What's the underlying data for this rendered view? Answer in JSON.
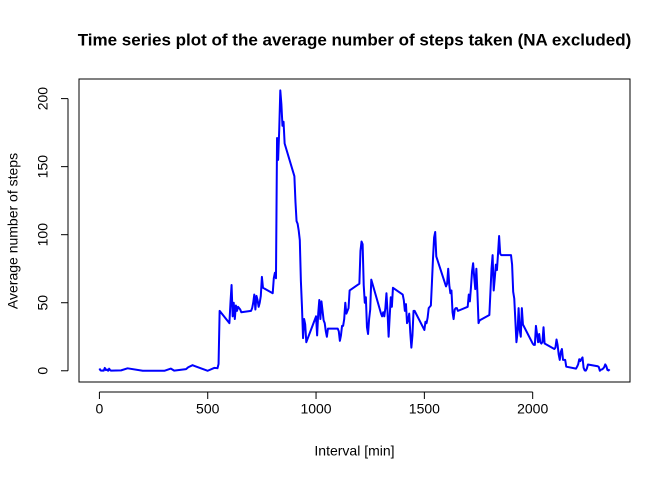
{
  "chart_data": {
    "type": "line",
    "title": "Time series plot of the average number of steps taken (NA excluded)",
    "x_label": "Interval [min]",
    "y_label": "Average number of steps",
    "xlim": [
      -94.2,
      2449.2
    ],
    "ylim": [
      -8.25,
      214.4
    ],
    "xticks": [
      0,
      500,
      1000,
      1500,
      2000
    ],
    "yticks": [
      0,
      50,
      100,
      150,
      200
    ],
    "x": [
      0,
      5,
      10,
      15,
      20,
      25,
      30,
      35,
      40,
      45,
      50,
      55,
      100,
      130,
      200,
      300,
      330,
      345,
      400,
      410,
      430,
      440,
      500,
      530,
      545,
      550,
      555,
      600,
      605,
      610,
      615,
      620,
      625,
      630,
      635,
      640,
      645,
      650,
      655,
      700,
      705,
      710,
      715,
      720,
      725,
      730,
      735,
      740,
      745,
      750,
      755,
      800,
      805,
      810,
      815,
      820,
      825,
      830,
      835,
      840,
      845,
      850,
      855,
      900,
      905,
      910,
      915,
      920,
      925,
      930,
      935,
      940,
      945,
      950,
      955,
      1000,
      1005,
      1010,
      1015,
      1020,
      1025,
      1030,
      1035,
      1040,
      1045,
      1050,
      1055,
      1100,
      1105,
      1110,
      1115,
      1120,
      1125,
      1130,
      1135,
      1140,
      1145,
      1150,
      1155,
      1200,
      1205,
      1210,
      1215,
      1220,
      1225,
      1230,
      1235,
      1240,
      1245,
      1250,
      1255,
      1300,
      1305,
      1310,
      1315,
      1320,
      1325,
      1330,
      1335,
      1340,
      1345,
      1350,
      1355,
      1400,
      1405,
      1410,
      1415,
      1420,
      1425,
      1430,
      1435,
      1440,
      1445,
      1450,
      1455,
      1500,
      1505,
      1510,
      1515,
      1520,
      1525,
      1530,
      1535,
      1540,
      1545,
      1550,
      1555,
      1600,
      1605,
      1610,
      1615,
      1620,
      1625,
      1630,
      1635,
      1640,
      1645,
      1650,
      1655,
      1700,
      1705,
      1710,
      1715,
      1720,
      1725,
      1730,
      1735,
      1740,
      1745,
      1750,
      1755,
      1800,
      1805,
      1810,
      1815,
      1820,
      1825,
      1830,
      1835,
      1840,
      1845,
      1850,
      1855,
      1900,
      1905,
      1910,
      1915,
      1920,
      1925,
      1930,
      1935,
      1940,
      1945,
      1950,
      1955,
      2000,
      2005,
      2010,
      2015,
      2020,
      2025,
      2030,
      2035,
      2040,
      2045,
      2050,
      2055,
      2100,
      2105,
      2110,
      2115,
      2120,
      2125,
      2130,
      2135,
      2140,
      2145,
      2150,
      2155,
      2200,
      2205,
      2210,
      2215,
      2220,
      2225,
      2230,
      2235,
      2240,
      2245,
      2250,
      2255,
      2300,
      2305,
      2310,
      2315,
      2320,
      2325,
      2330,
      2335,
      2340,
      2345,
      2350,
      2355
    ],
    "series": [
      {
        "color": "#0000ff",
        "values": [
          1.7,
          0.3,
          0.1,
          0.2,
          0.1,
          2.1,
          0.5,
          0.9,
          0,
          1.5,
          0.3,
          0.1,
          0.3,
          1.8,
          0,
          0,
          1.6,
          0.1,
          1.2,
          2.6,
          4.1,
          3.5,
          0,
          2.1,
          1.9,
          5,
          44,
          35,
          50,
          63,
          40,
          50,
          38,
          48,
          44,
          47,
          46,
          45,
          43,
          44,
          46,
          50,
          56,
          45,
          55,
          52,
          47,
          50,
          55,
          69,
          61,
          57,
          68,
          72,
          68,
          171,
          155,
          177,
          206,
          196,
          180,
          183,
          167,
          143,
          124,
          110,
          108,
          103,
          96,
          66,
          47,
          24,
          38,
          34,
          21,
          40,
          26,
          42,
          52,
          38,
          51,
          44,
          37,
          35,
          29,
          25,
          31,
          31,
          29,
          22,
          26,
          33,
          33,
          38,
          50,
          42,
          44,
          46,
          59,
          64,
          88,
          95,
          93,
          63,
          50,
          54,
          32,
          27,
          38,
          45,
          67,
          42,
          40,
          43,
          40,
          46,
          57,
          43,
          25,
          40,
          54,
          47,
          61,
          56,
          52,
          44,
          49,
          35,
          37,
          42,
          28,
          17,
          26,
          44,
          44,
          30,
          36,
          35,
          39,
          46,
          47,
          48,
          65,
          83,
          98,
          102,
          84,
          62,
          64,
          75,
          63,
          57,
          59,
          43,
          38,
          45,
          46,
          46,
          44,
          47,
          56,
          51,
          61,
          73,
          79,
          69,
          60,
          75,
          57,
          35,
          37,
          41,
          58,
          75,
          85,
          59,
          68,
          78,
          74,
          86,
          99,
          86,
          85,
          85,
          78,
          58,
          53,
          37,
          21,
          28,
          46,
          30,
          25,
          46,
          34,
          20,
          19,
          19,
          33,
          27,
          21,
          27,
          21,
          20,
          21,
          32,
          20,
          16,
          17,
          23,
          19,
          12,
          8,
          14,
          16,
          8,
          8,
          8,
          3,
          1.6,
          3,
          4.8,
          8.5,
          7.1,
          8.7,
          9.8,
          2.2,
          0.3,
          0.1,
          1.6,
          4.6,
          3.3,
          2.8,
          0,
          0.8,
          1,
          1.6,
          2.6,
          4.7,
          3.3,
          0.6,
          0.2,
          1.1
        ]
      }
    ]
  }
}
